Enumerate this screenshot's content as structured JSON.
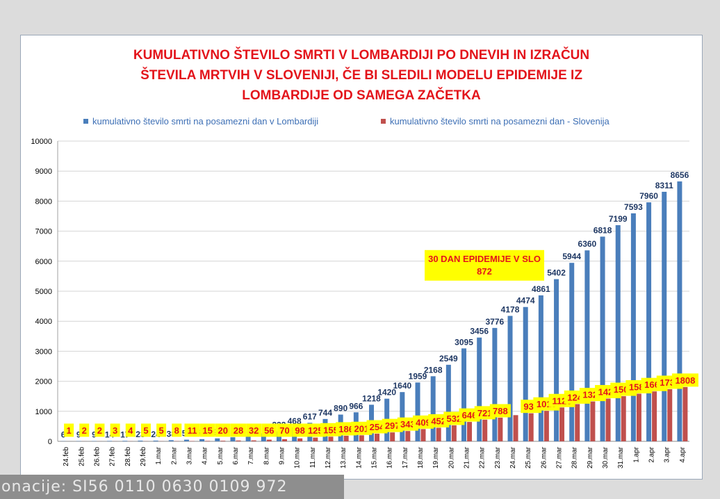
{
  "chart_data": {
    "type": "bar",
    "title_lines": [
      "KUMULATIVNO ŠTEVILO SMRTI V  LOMBARDIJI  PO DNEVIH IN  IZRAČUN",
      "ŠTEVILA MRTVIH V SLOVENIJI, ČE BI SLEDILI MODELU  EPIDEMIJE IZ",
      "LOMBARDIJE OD SAMEGA ZAČETKA"
    ],
    "categories": [
      "24.feb",
      "25.feb",
      "26.feb",
      "27.feb",
      "28.feb",
      "29.feb",
      "1.mar",
      "2.mar",
      "3.mar",
      "4.mar",
      "5.mar",
      "6.mar",
      "7.mar",
      "8.mar",
      "9.mar",
      "10.mar",
      "11.mar",
      "12.mar",
      "13.mar",
      "14.mar",
      "15.mar",
      "16.mar",
      "17.mar",
      "18.mar",
      "19.mar",
      "20.mar",
      "21.mar",
      "22.mar",
      "23.mar",
      "24.mar",
      "25.mar",
      "26.mar",
      "27.mar",
      "28.mar",
      "29.mar",
      "30.mar",
      "31.mar",
      "1.apr",
      "2.apr",
      "3.apr",
      "4.apr"
    ],
    "series": [
      {
        "name": "kumulativno število smrti na posamezni dan v Lombardiji",
        "color": "#4a7ebb",
        "values": [
          6,
          9,
          9,
          14,
          17,
          23,
          24,
          38,
          55,
          73,
          98,
          135,
          154,
          267,
          333,
          468,
          617,
          744,
          890,
          966,
          1218,
          1420,
          1640,
          1959,
          2168,
          2549,
          3095,
          3456,
          3776,
          4178,
          4474,
          4861,
          5402,
          5944,
          6360,
          6818,
          7199,
          7593,
          7960,
          8311,
          8656
        ],
        "labels": [
          "6",
          "9",
          "9",
          "14",
          "17",
          "23",
          "24",
          "38",
          "55",
          "73",
          "98",
          "135",
          "154",
          "267",
          "333",
          "468",
          "617",
          "744",
          "890",
          "966",
          "1218",
          "1420",
          "1640",
          "1959",
          "2168",
          "2549",
          "3095",
          "3456",
          "3776",
          "4178",
          "4474",
          "4861",
          "5402",
          "5944",
          "6360",
          "6818",
          "7199",
          "7593",
          "7960",
          "8311",
          "8656"
        ]
      },
      {
        "name": "kumulativno  število smrti na posamezni dan - Slovenija",
        "color": "#c0504d",
        "values": [
          1,
          2,
          2,
          3,
          4,
          5,
          5,
          8,
          11,
          15,
          20,
          28,
          32,
          56,
          70,
          98,
          125,
          155,
          186,
          201,
          254,
          297,
          343,
          409,
          452,
          532,
          646,
          721,
          788,
          872,
          934,
          1015,
          1128,
          1241,
          1328,
          1424,
          1503,
          1586,
          1662,
          1736,
          1808
        ],
        "labels": [
          "1",
          "2",
          "2",
          "3",
          "4",
          "5",
          "5",
          "8",
          "11",
          "15",
          "20",
          "28",
          "32",
          "56",
          "70",
          "98",
          "125",
          "155",
          "186",
          "201",
          "254",
          "297",
          "343",
          "409",
          "452",
          "532",
          "646",
          "721",
          "788",
          "",
          "934",
          "1015",
          "1128",
          "1241",
          "1328",
          "1424",
          "1503",
          "1586",
          "1662",
          "1736",
          "1808"
        ]
      }
    ],
    "ylim": [
      0,
      10000
    ],
    "yticks": [
      "0",
      "1000",
      "2000",
      "3000",
      "4000",
      "5000",
      "6000",
      "7000",
      "8000",
      "9000",
      "10000"
    ],
    "grid": true,
    "legend_position": "top",
    "annotation": {
      "lines": [
        "30 DAN EPIDEMIJE V SLO",
        "872"
      ],
      "category": "24.mar",
      "background": "#ffff00",
      "text_color": "#e3141b"
    },
    "label_box_color": "#ffff00",
    "label_text_color_slo": "#e3141b",
    "label_text_color_lomb": "#1f3864"
  },
  "bottom_banner": "onacije: SI56 0110 0630 0109 972"
}
